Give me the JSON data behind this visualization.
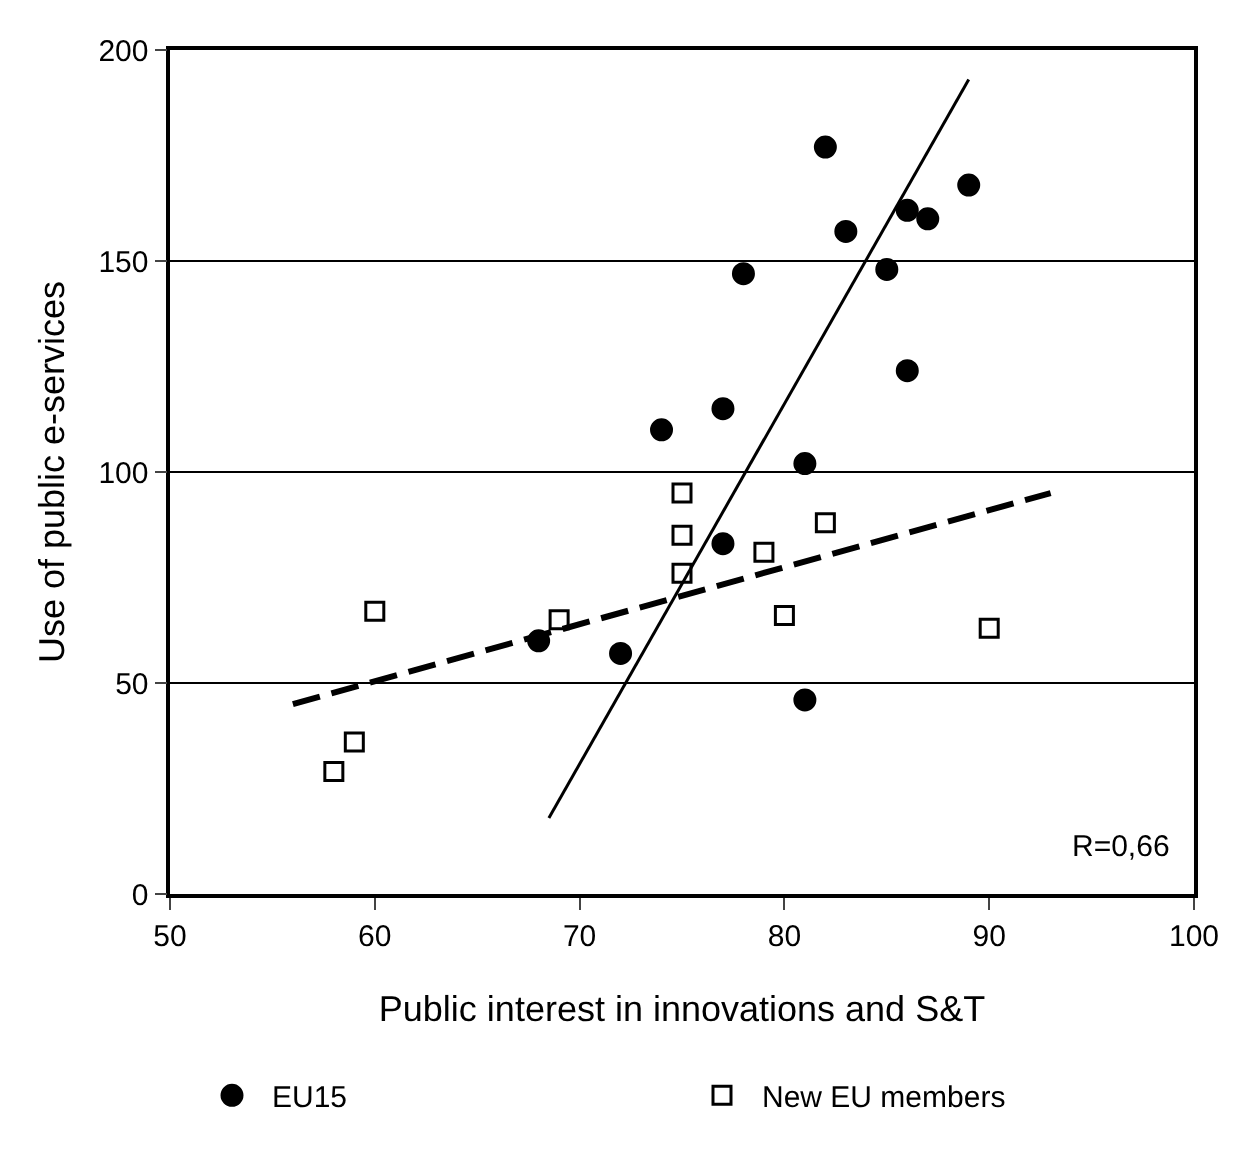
{
  "chart_data": {
    "type": "scatter",
    "xlabel": "Public interest in innovations and S&T",
    "ylabel": "Use of public e-services",
    "xlim": [
      50,
      100
    ],
    "xticks": [
      50,
      60,
      70,
      80,
      90,
      100
    ],
    "ylim": [
      0,
      200
    ],
    "yticks": [
      0,
      50,
      100,
      150,
      200
    ],
    "grid": "y",
    "legend": "bottom",
    "series": [
      {
        "name": "EU15",
        "color": "#000000",
        "marker": "circle",
        "x": [
          68,
          72,
          74,
          77,
          77,
          78,
          81,
          81,
          82,
          83,
          85,
          86,
          86,
          87,
          89
        ],
        "values": [
          60,
          57,
          110,
          115,
          83,
          147,
          102,
          46,
          177,
          157,
          148,
          162,
          124,
          160,
          168
        ]
      },
      {
        "name": "New EU members",
        "color": "#000000",
        "marker": "square",
        "x": [
          58,
          59,
          60,
          69,
          75,
          75,
          75,
          79,
          80,
          82,
          90
        ],
        "values": [
          29,
          36,
          67,
          65,
          95,
          85,
          76,
          81,
          66,
          88,
          63
        ]
      },
      {
        "type": "line",
        "color": "#000000",
        "line_style": "solid",
        "x": [
          68.5,
          89
        ],
        "values": [
          18,
          193
        ]
      },
      {
        "type": "line",
        "color": "#000000",
        "line_style": "dashed",
        "x": [
          56,
          93
        ],
        "values": [
          45,
          95
        ]
      }
    ],
    "annotations": [
      "R=0,66"
    ]
  }
}
